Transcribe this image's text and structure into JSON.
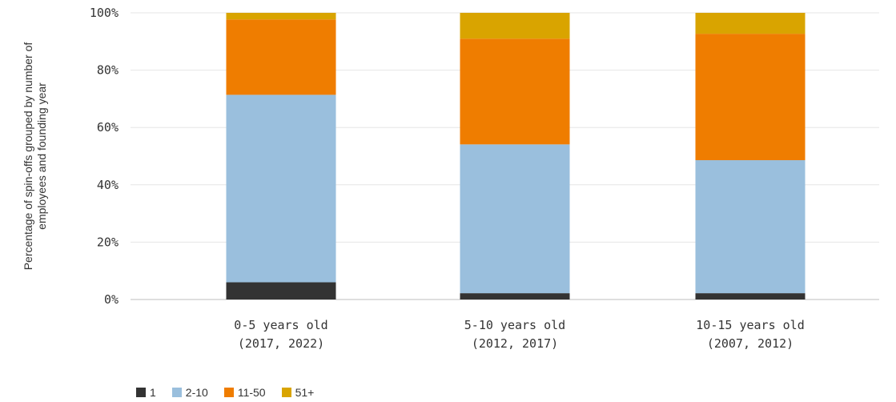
{
  "chart_data": {
    "type": "bar",
    "stacked": true,
    "ylabel_lines": [
      "Percentage of spin-offs grouped by number of",
      "employees and founding year"
    ],
    "ylim": [
      0,
      100
    ],
    "yticks": [
      "0%",
      "20%",
      "40%",
      "60%",
      "80%",
      "100%"
    ],
    "grid": true,
    "legend_position": "bottom-left",
    "categories": [
      [
        "0-5 years old",
        "(2017, 2022)"
      ],
      [
        "5-10 years old",
        "(2012, 2017)"
      ],
      [
        "10-15 years old",
        "(2007, 2012)"
      ]
    ],
    "series": [
      {
        "name": "1",
        "color": "#333333",
        "values": [
          6.0,
          2.2,
          2.2
        ]
      },
      {
        "name": "2-10",
        "color": "#9abfdd",
        "values": [
          65.4,
          51.9,
          46.4
        ]
      },
      {
        "name": "11-50",
        "color": "#ef7d00",
        "values": [
          26.3,
          36.9,
          44.1
        ]
      },
      {
        "name": "51+",
        "color": "#d9a400",
        "values": [
          2.3,
          9.0,
          7.3
        ]
      }
    ]
  }
}
